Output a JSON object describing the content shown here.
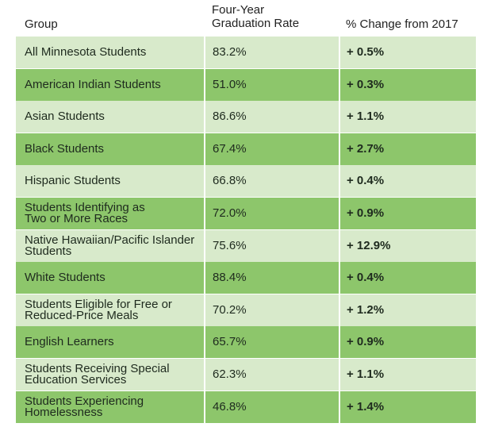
{
  "table": {
    "headers": {
      "group": "Group",
      "rate": [
        "Four-Year",
        "Graduation Rate"
      ],
      "change": "% Change from 2017"
    },
    "rows": [
      {
        "group": [
          "All Minnesota Students"
        ],
        "rate": "83.2%",
        "change": "+ 0.5%"
      },
      {
        "group": [
          "American Indian Students"
        ],
        "rate": "51.0%",
        "change": "+ 0.3%"
      },
      {
        "group": [
          "Asian Students"
        ],
        "rate": "86.6%",
        "change": "+ 1.1%"
      },
      {
        "group": [
          "Black Students"
        ],
        "rate": "67.4%",
        "change": "+ 2.7%"
      },
      {
        "group": [
          "Hispanic Students"
        ],
        "rate": "66.8%",
        "change": "+ 0.4%"
      },
      {
        "group": [
          "Students Identifying as",
          "Two or More Races"
        ],
        "rate": "72.0%",
        "change": "+ 0.9%"
      },
      {
        "group": [
          "Native Hawaiian/Pacific Islander",
          "Students"
        ],
        "rate": "75.6%",
        "change": "+ 12.9%"
      },
      {
        "group": [
          "White Students"
        ],
        "rate": "88.4%",
        "change": "+ 0.4%"
      },
      {
        "group": [
          "Students Eligible for Free or",
          "Reduced-Price Meals"
        ],
        "rate": "70.2%",
        "change": "+ 1.2%"
      },
      {
        "group": [
          "English Learners"
        ],
        "rate": "65.7%",
        "change": "+ 0.9%"
      },
      {
        "group": [
          "Students Receiving Special",
          "Education Services"
        ],
        "rate": "62.3%",
        "change": "+ 1.1%"
      },
      {
        "group": [
          "Students Experiencing",
          "Homelessness"
        ],
        "rate": "46.8%",
        "change": "+ 1.4%"
      }
    ]
  }
}
